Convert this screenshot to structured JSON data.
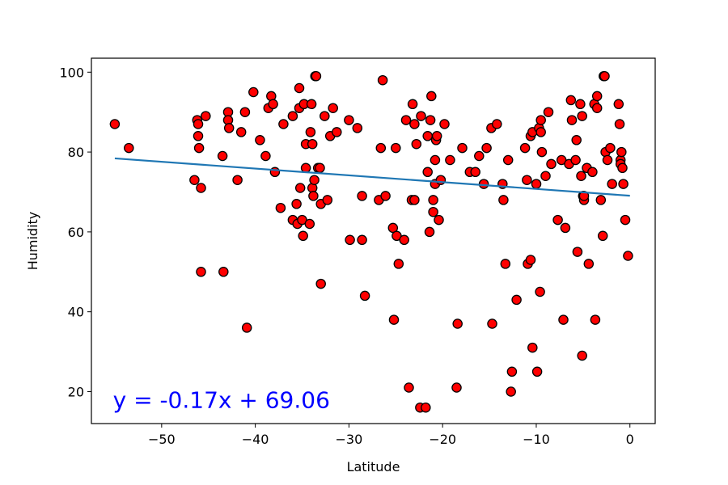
{
  "chart_data": {
    "type": "scatter",
    "title": "",
    "xlabel": "Latitude",
    "ylabel": "Humidity",
    "xlim": [
      -57.5,
      2.7
    ],
    "ylim": [
      12,
      103.5
    ],
    "xticks": [
      -50,
      -40,
      -30,
      -20,
      -10,
      0
    ],
    "yticks": [
      20,
      40,
      60,
      80,
      100
    ],
    "xtick_labels": [
      "−50",
      "−40",
      "−30",
      "−20",
      "−10",
      "0"
    ],
    "ytick_labels": [
      "20",
      "40",
      "60",
      "80",
      "100"
    ],
    "grid": false,
    "marker_color": "#ff0000",
    "marker_edge_color": "#000000",
    "line_color": "#1f77b4",
    "annotation_color": "#0000ff",
    "regression": {
      "slope": -0.17,
      "intercept": 69.06,
      "x_range": [
        -55,
        0
      ],
      "equation_text": "y = -0.17x + 69.06",
      "equation_position": [
        -55.2,
        18
      ]
    },
    "points": [
      [
        -55,
        87
      ],
      [
        -53.5,
        81
      ],
      [
        -46.5,
        73
      ],
      [
        -46.2,
        88
      ],
      [
        -46.1,
        87
      ],
      [
        -46.1,
        84
      ],
      [
        -46,
        81
      ],
      [
        -45.8,
        71
      ],
      [
        -45.8,
        50
      ],
      [
        -45.3,
        89
      ],
      [
        -43.4,
        50
      ],
      [
        -43.5,
        79
      ],
      [
        -42.9,
        90
      ],
      [
        -42.9,
        88
      ],
      [
        -42.8,
        86
      ],
      [
        -41.9,
        73
      ],
      [
        -41.5,
        85
      ],
      [
        -41.1,
        90
      ],
      [
        -40.9,
        36
      ],
      [
        -40.2,
        95
      ],
      [
        -39.5,
        83
      ],
      [
        -38.9,
        79
      ],
      [
        -38.6,
        91
      ],
      [
        -38.3,
        94
      ],
      [
        -38.1,
        92
      ],
      [
        -37.9,
        75
      ],
      [
        -37.3,
        66
      ],
      [
        -37,
        87
      ],
      [
        -36,
        63
      ],
      [
        -36,
        89
      ],
      [
        -35.6,
        67
      ],
      [
        -35.5,
        62
      ],
      [
        -35.3,
        96
      ],
      [
        -35.3,
        91
      ],
      [
        -35.2,
        71
      ],
      [
        -35,
        63
      ],
      [
        -34.9,
        59
      ],
      [
        -34.8,
        92
      ],
      [
        -34.6,
        82
      ],
      [
        -34.6,
        76
      ],
      [
        -34.2,
        62
      ],
      [
        -34.1,
        85
      ],
      [
        -34,
        92
      ],
      [
        -33.9,
        82
      ],
      [
        -33.9,
        71
      ],
      [
        -33.8,
        69
      ],
      [
        -33.7,
        73
      ],
      [
        -33.6,
        99
      ],
      [
        -33.5,
        99
      ],
      [
        -33.3,
        76
      ],
      [
        -33.1,
        76
      ],
      [
        -33,
        67
      ],
      [
        -33,
        47
      ],
      [
        -32.6,
        89
      ],
      [
        -32.3,
        68
      ],
      [
        -32,
        84
      ],
      [
        -31.7,
        91
      ],
      [
        -31.3,
        85
      ],
      [
        -30,
        88
      ],
      [
        -29.9,
        58
      ],
      [
        -29.1,
        86
      ],
      [
        -28.6,
        58
      ],
      [
        -28.6,
        69
      ],
      [
        -28.3,
        44
      ],
      [
        -26.8,
        68
      ],
      [
        -26.6,
        81
      ],
      [
        -26.4,
        98
      ],
      [
        -26.1,
        69
      ],
      [
        -25.3,
        61
      ],
      [
        -25.2,
        38
      ],
      [
        -25,
        81
      ],
      [
        -24.9,
        59
      ],
      [
        -24.7,
        52
      ],
      [
        -24.1,
        58
      ],
      [
        -23.9,
        88
      ],
      [
        -23.6,
        21
      ],
      [
        -23.3,
        68
      ],
      [
        -23.2,
        92
      ],
      [
        -23,
        68
      ],
      [
        -23,
        87
      ],
      [
        -22.8,
        82
      ],
      [
        -22.4,
        16
      ],
      [
        -22.3,
        89
      ],
      [
        -21.8,
        16
      ],
      [
        -21.6,
        75
      ],
      [
        -21.6,
        84
      ],
      [
        -21.4,
        60
      ],
      [
        -21.3,
        88
      ],
      [
        -21.2,
        94
      ],
      [
        -21,
        65
      ],
      [
        -21,
        68
      ],
      [
        -20.8,
        72
      ],
      [
        -20.8,
        78
      ],
      [
        -20.7,
        83
      ],
      [
        -20.6,
        84
      ],
      [
        -20.4,
        63
      ],
      [
        -20.2,
        73
      ],
      [
        -19.8,
        87
      ],
      [
        -19.2,
        78
      ],
      [
        -18.5,
        21
      ],
      [
        -18.4,
        37
      ],
      [
        -17.9,
        81
      ],
      [
        -17.1,
        75
      ],
      [
        -16.5,
        75
      ],
      [
        -16.1,
        79
      ],
      [
        -15.6,
        72
      ],
      [
        -15.3,
        81
      ],
      [
        -14.8,
        86
      ],
      [
        -14.7,
        37
      ],
      [
        -14.2,
        87
      ],
      [
        -13.6,
        72
      ],
      [
        -13.5,
        68
      ],
      [
        -13.3,
        52
      ],
      [
        -13,
        78
      ],
      [
        -12.7,
        20
      ],
      [
        -12.6,
        25
      ],
      [
        -12.1,
        43
      ],
      [
        -11.2,
        81
      ],
      [
        -11,
        73
      ],
      [
        -10.9,
        52
      ],
      [
        -10.6,
        53
      ],
      [
        -10.6,
        84
      ],
      [
        -10.4,
        85
      ],
      [
        -10.4,
        31
      ],
      [
        -10,
        72
      ],
      [
        -9.9,
        25
      ],
      [
        -9.7,
        86
      ],
      [
        -9.6,
        45
      ],
      [
        -9.5,
        85
      ],
      [
        -9.5,
        88
      ],
      [
        -9.4,
        80
      ],
      [
        -9,
        74
      ],
      [
        -8.7,
        90
      ],
      [
        -8.4,
        77
      ],
      [
        -7.7,
        63
      ],
      [
        -7.3,
        78
      ],
      [
        -7.1,
        38
      ],
      [
        -6.9,
        61
      ],
      [
        -6.5,
        77
      ],
      [
        -6.3,
        93
      ],
      [
        -6.2,
        88
      ],
      [
        -5.8,
        78
      ],
      [
        -5.7,
        83
      ],
      [
        -5.6,
        55
      ],
      [
        -5.3,
        92
      ],
      [
        -5.2,
        74
      ],
      [
        -5.1,
        89
      ],
      [
        -5.1,
        29
      ],
      [
        -5,
        69
      ],
      [
        -4.9,
        68
      ],
      [
        -4.9,
        69
      ],
      [
        -4.6,
        76
      ],
      [
        -4.4,
        52
      ],
      [
        -4,
        75
      ],
      [
        -3.8,
        92
      ],
      [
        -3.7,
        38
      ],
      [
        -3.5,
        94
      ],
      [
        -3.5,
        91
      ],
      [
        -3.1,
        68
      ],
      [
        -2.9,
        59
      ],
      [
        -2.8,
        99
      ],
      [
        -2.7,
        99
      ],
      [
        -2.6,
        80
      ],
      [
        -2.4,
        78
      ],
      [
        -2.1,
        81
      ],
      [
        -1.9,
        72
      ],
      [
        -1.2,
        92
      ],
      [
        -1.1,
        87
      ],
      [
        -1,
        78
      ],
      [
        -1,
        77
      ],
      [
        -0.9,
        80
      ],
      [
        -0.8,
        76
      ],
      [
        -0.7,
        72
      ],
      [
        -0.5,
        63
      ],
      [
        -0.2,
        54
      ]
    ]
  }
}
